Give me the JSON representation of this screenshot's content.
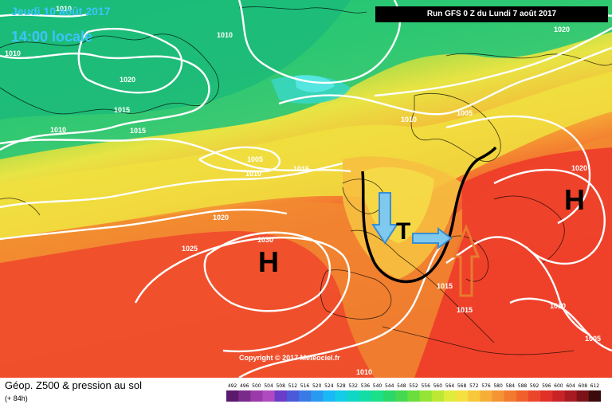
{
  "header": {
    "date": "Jeudi 10 août 2017",
    "local_time": "14:00 locale",
    "run_info": "Run GFS 0 Z du Lundi 7 août 2017"
  },
  "map": {
    "copyright": "Copyright © 2017 Meteociel.fr",
    "pressure_systems": [
      {
        "label": "H",
        "kind": "high",
        "name": "high-atlantic"
      },
      {
        "label": "H",
        "kind": "high",
        "name": "high-east"
      },
      {
        "label": "T",
        "kind": "trough",
        "name": "trough-label"
      }
    ],
    "isobar_labels": [
      "1010",
      "1010",
      "1010",
      "1020",
      "1015",
      "1015",
      "1010",
      "1005",
      "1010",
      "1015",
      "1020",
      "1025",
      "1030",
      "1010",
      "1005",
      "1020",
      "1015",
      "1015",
      "1010",
      "1005",
      "1010",
      "1020"
    ],
    "colors": {
      "green": "#22c47a",
      "yellow": "#f2e84a",
      "orange": "#f5a033",
      "red": "#ef3a2c",
      "arrow_blue": "#4aa6e0",
      "arrow_orange": "#e97a2e"
    }
  },
  "legend": {
    "title": "Géop. Z500 & pression au sol",
    "subtitle": "(+ 84h)",
    "ticks": [
      "492",
      "496",
      "500",
      "504",
      "508",
      "512",
      "516",
      "520",
      "524",
      "528",
      "532",
      "536",
      "540",
      "544",
      "548",
      "552",
      "556",
      "560",
      "564",
      "568",
      "572",
      "576",
      "580",
      "584",
      "588",
      "592",
      "596",
      "600",
      "604",
      "608",
      "612"
    ],
    "colors": [
      "#5a1a6e",
      "#7a2a8a",
      "#9a3aa8",
      "#b04ac0",
      "#6a3cc8",
      "#4a5ad8",
      "#3a7ae6",
      "#2a9af0",
      "#1ab8f4",
      "#14cce6",
      "#10d6c6",
      "#14dca6",
      "#1ce088",
      "#2ad86a",
      "#46d850",
      "#6ade3e",
      "#94e436",
      "#bce834",
      "#e0ec3c",
      "#f4e040",
      "#f6c83a",
      "#f6ae36",
      "#f49432",
      "#f27a2e",
      "#f0602c",
      "#ec462a",
      "#e03028",
      "#c82426",
      "#a81a22",
      "#7a1218",
      "#3a0a0c"
    ]
  }
}
